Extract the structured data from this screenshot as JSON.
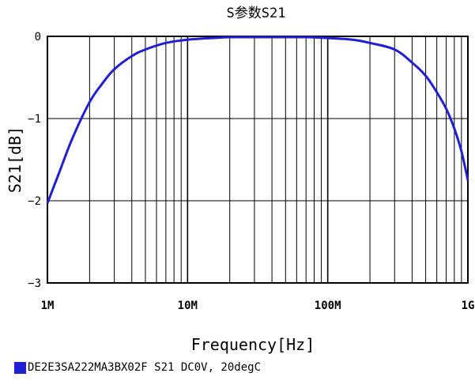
{
  "chart_data": {
    "type": "line",
    "title": "S参数S21",
    "xlabel": "Frequency[Hz]",
    "ylabel": "S21[dB]",
    "xscale": "log",
    "xlim": [
      1000000,
      1000000000
    ],
    "ylim": [
      -3,
      0
    ],
    "grid": true,
    "x_ticks": [
      {
        "value": 1000000,
        "label": "1M"
      },
      {
        "value": 10000000,
        "label": "10M"
      },
      {
        "value": 100000000,
        "label": "100M"
      },
      {
        "value": 1000000000,
        "label": "1G"
      }
    ],
    "y_ticks": [
      {
        "value": -3,
        "label": "−3"
      },
      {
        "value": -2,
        "label": "−2"
      },
      {
        "value": -1,
        "label": "−1"
      },
      {
        "value": 0,
        "label": "0"
      }
    ],
    "legend_position": "bottom-left",
    "series": [
      {
        "name": "DE2E3SA222MA3BX02F  S21  DC0V, 20degC",
        "color": "#1f1fd6",
        "x": [
          1000000,
          1200000,
          1500000,
          2000000,
          2500000,
          3000000,
          4000000,
          5000000,
          7000000,
          10000000,
          15000000,
          20000000,
          30000000,
          50000000,
          70000000,
          100000000,
          150000000,
          200000000,
          300000000,
          400000000,
          500000000,
          600000000,
          700000000,
          800000000,
          900000000,
          1000000000
        ],
        "y": [
          -2.03,
          -1.68,
          -1.25,
          -0.8,
          -0.56,
          -0.4,
          -0.24,
          -0.16,
          -0.08,
          -0.04,
          -0.02,
          -0.01,
          -0.01,
          -0.01,
          -0.01,
          -0.02,
          -0.04,
          -0.08,
          -0.16,
          -0.32,
          -0.48,
          -0.68,
          -0.88,
          -1.12,
          -1.4,
          -1.75
        ]
      }
    ]
  }
}
